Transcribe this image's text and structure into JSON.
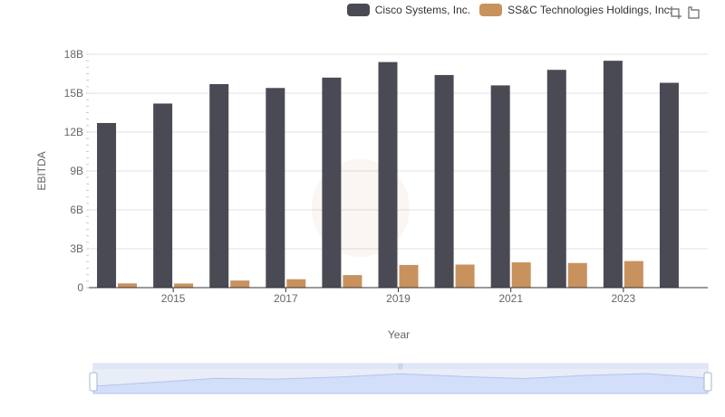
{
  "legend": [
    {
      "name": "Cisco Systems, Inc.",
      "color": "#4a4a55"
    },
    {
      "name": "SS&C Technologies Holdings, Inc.",
      "color": "#c8925e"
    }
  ],
  "toolbox": {
    "zoom_icon": "crop-zoom-icon",
    "restore_icon": "restore-icon"
  },
  "chart_data": {
    "type": "bar",
    "xlabel": "Year",
    "ylabel": "EBITDA",
    "categories": [
      "2014",
      "2015",
      "2016",
      "2017",
      "2018",
      "2019",
      "2020",
      "2021",
      "2022",
      "2023",
      "2024"
    ],
    "x_tick_labels": [
      "2015",
      "2017",
      "2019",
      "2021",
      "2023"
    ],
    "y_ticks": [
      "0",
      "3B",
      "6B",
      "9B",
      "12B",
      "15B",
      "18B"
    ],
    "ylim": [
      0,
      18000000000
    ],
    "grid": true,
    "legend_position": "top-right",
    "series": [
      {
        "name": "Cisco Systems, Inc.",
        "color": "#4a4a55",
        "values": [
          12700000000,
          14200000000,
          15700000000,
          15400000000,
          16200000000,
          17400000000,
          16400000000,
          15600000000,
          16800000000,
          17500000000,
          15800000000
        ]
      },
      {
        "name": "SS&C Technologies Holdings, Inc.",
        "color": "#c8925e",
        "values": [
          330000000,
          320000000,
          550000000,
          650000000,
          970000000,
          1750000000,
          1780000000,
          1950000000,
          1900000000,
          2050000000,
          null
        ]
      }
    ]
  }
}
